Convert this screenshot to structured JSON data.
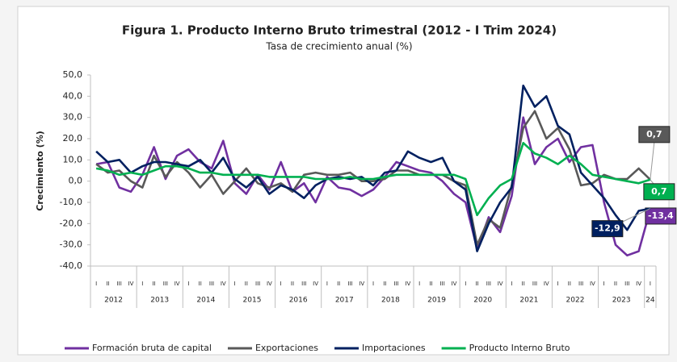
{
  "chart_data": {
    "type": "line",
    "title": "Figura 1. Producto Interno Bruto trimestral (2012 - I Trim 2024)",
    "subtitle": "Tasa de crecimiento anual (%)",
    "y_label": "Crecimiento (%)",
    "categories": [
      "I",
      "II",
      "III",
      "IV",
      "I",
      "II",
      "III",
      "IV",
      "I",
      "II",
      "III",
      "IV",
      "I",
      "II",
      "III",
      "IV",
      "I",
      "II",
      "III",
      "IV",
      "I",
      "II",
      "III",
      "IV",
      "I",
      "II",
      "III",
      "IV",
      "I",
      "II",
      "III",
      "IV",
      "I",
      "II",
      "III",
      "IV",
      "I",
      "II",
      "III",
      "IV",
      "I",
      "II",
      "III",
      "IV",
      "I",
      "II",
      "III",
      "IV",
      "I"
    ],
    "years": [
      "2012",
      "2013",
      "2014",
      "2015",
      "2016",
      "2017",
      "2018",
      "2019",
      "2020",
      "2021",
      "2022",
      "2023",
      "24"
    ],
    "ylim": [
      -40,
      50
    ],
    "yticks": [
      {
        "value": -40,
        "label": "-40,0"
      },
      {
        "value": -30,
        "label": "-30,0"
      },
      {
        "value": -20,
        "label": "-20,0"
      },
      {
        "value": -10,
        "label": "-10,0"
      },
      {
        "value": 0,
        "label": "0,0"
      },
      {
        "value": 10,
        "label": "10,0"
      },
      {
        "value": 20,
        "label": "20,0"
      },
      {
        "value": 30,
        "label": "30,0"
      },
      {
        "value": 40,
        "label": "40,0"
      },
      {
        "value": 50,
        "label": "50,0"
      }
    ],
    "grid": false,
    "legend": "bottom",
    "series": [
      {
        "name": "Formación bruta de capital",
        "color": "#7030a0",
        "values": [
          8,
          9,
          -3,
          -5,
          3,
          16,
          1,
          12,
          15,
          9,
          6,
          19,
          -1,
          -6,
          3,
          -4,
          9,
          -5,
          -1,
          -10,
          2,
          -3,
          -4,
          -7,
          -4,
          2,
          9,
          7,
          5,
          4,
          0,
          -6,
          -10,
          -32,
          -17,
          -24,
          -7,
          30,
          8,
          16,
          20,
          9,
          16,
          17,
          -10,
          -30,
          -35,
          -33,
          -13.4
        ],
        "value_labels": [
          null,
          null,
          null,
          null,
          null,
          null,
          null,
          null,
          null,
          null,
          null,
          null,
          null,
          null,
          null,
          null,
          null,
          null,
          null,
          null,
          null,
          null,
          null,
          null,
          null,
          null,
          null,
          null,
          null,
          null,
          null,
          null,
          null,
          null,
          null,
          null,
          null,
          null,
          null,
          null,
          null,
          null,
          null,
          null,
          null,
          null,
          null,
          null,
          "-13,4"
        ]
      },
      {
        "name": "Exportaciones",
        "color": "#595959",
        "values": [
          8,
          4,
          5,
          0,
          -3,
          12,
          2,
          9,
          4,
          -3,
          3,
          -6,
          0,
          6,
          -1,
          -3,
          -1,
          -5,
          3,
          4,
          3,
          3,
          4,
          0,
          0,
          1,
          5,
          5,
          3,
          3,
          3,
          0,
          -2,
          -30,
          -18,
          -22,
          -2,
          25,
          33,
          20,
          25,
          15,
          -2,
          -1,
          3,
          1,
          1,
          6,
          0.7
        ],
        "value_labels": [
          null,
          null,
          null,
          null,
          null,
          null,
          null,
          null,
          null,
          null,
          null,
          null,
          null,
          null,
          null,
          null,
          null,
          null,
          null,
          null,
          null,
          null,
          null,
          null,
          null,
          null,
          null,
          null,
          null,
          null,
          null,
          null,
          null,
          null,
          null,
          null,
          null,
          null,
          null,
          null,
          null,
          null,
          null,
          null,
          null,
          null,
          null,
          null,
          "0,7"
        ]
      },
      {
        "name": "Importaciones",
        "color": "#002060",
        "values": [
          14,
          9,
          10,
          4,
          7,
          9,
          9,
          8,
          7,
          10,
          4,
          11,
          1,
          -3,
          2,
          -6,
          -2,
          -4,
          -8,
          -2,
          1,
          2,
          1,
          2,
          -2,
          4,
          5,
          14,
          11,
          9,
          11,
          0,
          -4,
          -33,
          -20,
          -10,
          -3,
          45,
          35,
          40,
          26,
          22,
          4,
          -2,
          -8,
          -16,
          -23,
          -14,
          -12.9
        ],
        "value_labels": [
          null,
          null,
          null,
          null,
          null,
          null,
          null,
          null,
          null,
          null,
          null,
          null,
          null,
          null,
          null,
          null,
          null,
          null,
          null,
          null,
          null,
          null,
          null,
          null,
          null,
          null,
          null,
          null,
          null,
          null,
          null,
          null,
          null,
          null,
          null,
          null,
          null,
          null,
          null,
          null,
          null,
          null,
          null,
          null,
          null,
          null,
          null,
          null,
          "-12,9"
        ]
      },
      {
        "name": "Producto Interno Bruto",
        "color": "#00b050",
        "values": [
          6,
          5,
          3,
          4,
          3,
          5,
          7,
          7,
          6,
          4,
          4,
          3,
          3,
          3,
          3,
          2,
          2,
          2,
          2,
          1,
          1,
          1,
          2,
          1,
          1,
          2,
          3,
          3,
          3,
          3,
          3,
          3,
          1,
          -16,
          -8,
          -2,
          1,
          18,
          13,
          11,
          8,
          12,
          8,
          3,
          2,
          1,
          0,
          -1,
          0.7
        ],
        "value_labels": [
          null,
          null,
          null,
          null,
          null,
          null,
          null,
          null,
          null,
          null,
          null,
          null,
          null,
          null,
          null,
          null,
          null,
          null,
          null,
          null,
          null,
          null,
          null,
          null,
          null,
          null,
          null,
          null,
          null,
          null,
          null,
          null,
          null,
          null,
          null,
          null,
          null,
          null,
          null,
          null,
          null,
          null,
          null,
          null,
          null,
          null,
          null,
          null,
          "0,7"
        ]
      }
    ]
  }
}
